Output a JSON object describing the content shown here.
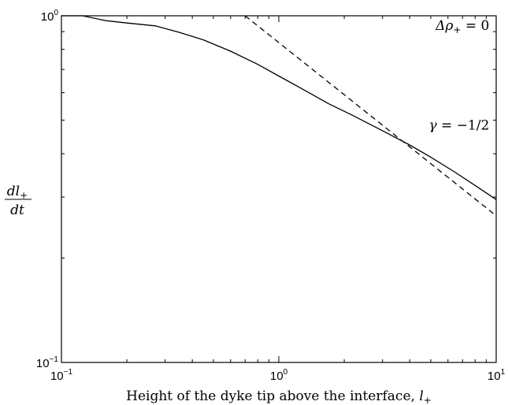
{
  "chart_data": {
    "type": "line",
    "scale": {
      "x": "log",
      "y": "log"
    },
    "xlim": [
      0.1,
      10
    ],
    "ylim": [
      0.1,
      1
    ],
    "grid": false,
    "legend": "none",
    "xlabel": {
      "text": "Height of the dyke tip above the interface, ",
      "var": "l",
      "sub": "+"
    },
    "ylabel": {
      "num": "dl",
      "num_sub": "+",
      "den": "dt"
    },
    "x_ticks": [
      {
        "value": 0.1,
        "base": "10",
        "exp": "−1"
      },
      {
        "value": 1,
        "base": "10",
        "exp": "0"
      },
      {
        "value": 10,
        "base": "10",
        "exp": "1"
      }
    ],
    "y_ticks": [
      {
        "value": 0.1,
        "base": "10",
        "exp": "−1"
      },
      {
        "value": 1,
        "base": "10",
        "exp": "0"
      }
    ],
    "series": [
      {
        "style": "solid",
        "x": [
          0.1,
          0.125,
          0.16,
          0.2,
          0.27,
          0.35,
          0.45,
          0.6,
          0.8,
          1.0,
          1.3,
          1.7,
          2.2,
          3.0,
          4.0,
          5.0,
          6.5,
          8.0,
          10.0
        ],
        "y": [
          1.0,
          1.0,
          0.968,
          0.953,
          0.935,
          0.895,
          0.852,
          0.79,
          0.724,
          0.67,
          0.612,
          0.557,
          0.515,
          0.466,
          0.424,
          0.391,
          0.353,
          0.324,
          0.295
        ]
      },
      {
        "style": "dashed",
        "x": [
          0.7,
          10.0
        ],
        "y": [
          1.0,
          0.265
        ]
      }
    ],
    "annotations": [
      {
        "lhs": "Δρ",
        "sub": "+",
        "rhs": " = 0",
        "x": 9.3,
        "y": 0.91
      },
      {
        "lhs": "γ",
        "sub": "",
        "rhs": " = −1/2",
        "x": 9.3,
        "y": 0.47
      }
    ]
  }
}
